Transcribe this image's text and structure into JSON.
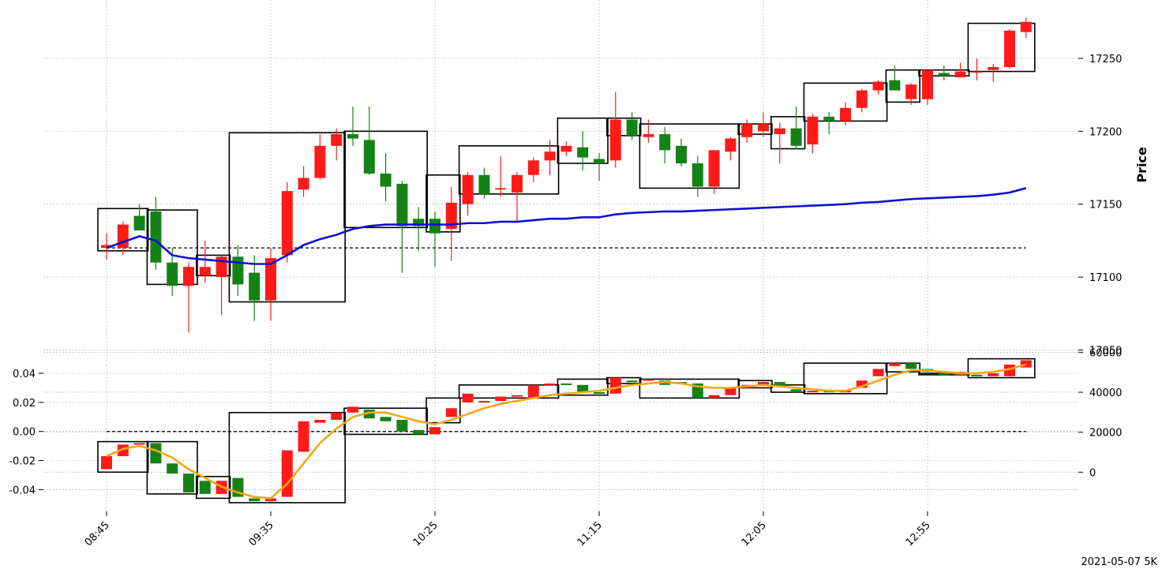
{
  "chart_data": {
    "type": "candlestick",
    "footer": "2021-05-07 5K",
    "colors": {
      "up": "#ff1a1a",
      "down": "#158215",
      "ma": "#1010d0",
      "osc": "#f0a818",
      "box": "#000000"
    },
    "x_ticks": [
      {
        "index": 0,
        "label": "08:45"
      },
      {
        "index": 10,
        "label": "09:35"
      },
      {
        "index": 20,
        "label": "10:25"
      },
      {
        "index": 30,
        "label": "11:15"
      },
      {
        "index": 40,
        "label": "12:05"
      },
      {
        "index": 50,
        "label": "12:55"
      }
    ],
    "price_panel": {
      "ylabel": "Price",
      "ylim": [
        17040,
        17290
      ],
      "y_ticks": [
        17050,
        17100,
        17150,
        17200,
        17250
      ],
      "reference_line": 17120,
      "candles": [
        [
          17120,
          17130,
          17112,
          17122
        ],
        [
          17120,
          17138,
          17115,
          17136
        ],
        [
          17142,
          17150,
          17133,
          17132
        ],
        [
          17145,
          17155,
          17105,
          17110
        ],
        [
          17110,
          17120,
          17087,
          17094
        ],
        [
          17094,
          17110,
          17062,
          17107
        ],
        [
          17101,
          17125,
          17096,
          17107
        ],
        [
          17100,
          17115,
          17074,
          17114
        ],
        [
          17114,
          17122,
          17087,
          17095
        ],
        [
          17103,
          17115,
          17070,
          17084
        ],
        [
          17084,
          17120,
          17070,
          17113
        ],
        [
          17115,
          17165,
          17110,
          17159
        ],
        [
          17160,
          17176,
          17155,
          17168
        ],
        [
          17168,
          17198,
          17167,
          17190
        ],
        [
          17190,
          17202,
          17180,
          17198
        ],
        [
          17198,
          17217,
          17190,
          17195
        ],
        [
          17194,
          17217,
          17170,
          17171
        ],
        [
          17171,
          17185,
          17152,
          17162
        ],
        [
          17164,
          17166,
          17103,
          17135
        ],
        [
          17140,
          17148,
          17118,
          17135
        ],
        [
          17140,
          17145,
          17107,
          17130
        ],
        [
          17133,
          17162,
          17111,
          17151
        ],
        [
          17150,
          17172,
          17142,
          17170
        ],
        [
          17170,
          17175,
          17154,
          17157
        ],
        [
          17160,
          17183,
          17155,
          17161
        ],
        [
          17158,
          17172,
          17137,
          17170
        ],
        [
          17170,
          17182,
          17165,
          17180
        ],
        [
          17180,
          17194,
          17170,
          17186
        ],
        [
          17186,
          17193,
          17183,
          17190
        ],
        [
          17189,
          17200,
          17173,
          17182
        ],
        [
          17181,
          17185,
          17166,
          17178
        ],
        [
          17180,
          17227,
          17175,
          17208
        ],
        [
          17208,
          17213,
          17194,
          17197
        ],
        [
          17196,
          17208,
          17192,
          17198
        ],
        [
          17198,
          17203,
          17178,
          17187
        ],
        [
          17190,
          17195,
          17176,
          17178
        ],
        [
          17178,
          17183,
          17155,
          17162
        ],
        [
          17162,
          17187,
          17157,
          17187
        ],
        [
          17186,
          17196,
          17180,
          17195
        ],
        [
          17196,
          17208,
          17192,
          17205
        ],
        [
          17200,
          17213,
          17196,
          17205
        ],
        [
          17198,
          17206,
          17178,
          17202
        ],
        [
          17202,
          17217,
          17188,
          17190
        ],
        [
          17191,
          17212,
          17185,
          17210
        ],
        [
          17210,
          17213,
          17198,
          17207
        ],
        [
          17207,
          17220,
          17204,
          17216
        ],
        [
          17216,
          17229,
          17213,
          17228
        ],
        [
          17228,
          17235,
          17225,
          17234
        ],
        [
          17235,
          17245,
          17230,
          17228
        ],
        [
          17222,
          17233,
          17218,
          17232
        ],
        [
          17222,
          17242,
          17218,
          17242
        ],
        [
          17240,
          17245,
          17235,
          17238
        ],
        [
          17237,
          17247,
          17237,
          17241
        ],
        [
          17241,
          17250,
          17235,
          17241
        ],
        [
          17242,
          17246,
          17234,
          17244
        ],
        [
          17244,
          17270,
          17243,
          17269
        ],
        [
          17268,
          17278,
          17264,
          17275
        ]
      ],
      "moving_average": [
        17120,
        17124,
        17128,
        17125,
        17115,
        17113,
        17112,
        17111,
        17110,
        17109,
        17109,
        17115,
        17122,
        17126,
        17129,
        17133,
        17135,
        17136,
        17136,
        17136,
        17136,
        17136,
        17137,
        17137,
        17138,
        17138,
        17139,
        17140,
        17140,
        17141,
        17141,
        17143,
        17144,
        17144.5,
        17145,
        17145,
        17145.5,
        17146,
        17146.5,
        17147,
        17147.5,
        17148,
        17148.5,
        17149,
        17149.5,
        17150,
        17151,
        17151.5,
        17152.5,
        17153.5,
        17154,
        17154.5,
        17155,
        17155.5,
        17156.5,
        17158,
        17161
      ],
      "boxes": [
        {
          "from": 0,
          "to": 2,
          "low": 17118,
          "high": 17147
        },
        {
          "from": 3,
          "to": 5,
          "low": 17095,
          "high": 17146
        },
        {
          "from": 6,
          "to": 7,
          "low": 17101,
          "high": 17115
        },
        {
          "from": 8,
          "to": 14,
          "low": 17083,
          "high": 17199
        },
        {
          "from": 15,
          "to": 19,
          "low": 17134,
          "high": 17200
        },
        {
          "from": 20,
          "to": 21,
          "low": 17131,
          "high": 17170
        },
        {
          "from": 22,
          "to": 27,
          "low": 17157,
          "high": 17190
        },
        {
          "from": 28,
          "to": 30,
          "low": 17178,
          "high": 17209
        },
        {
          "from": 31,
          "to": 32,
          "low": 17197,
          "high": 17209
        },
        {
          "from": 33,
          "to": 38,
          "low": 17161,
          "high": 17205
        },
        {
          "from": 39,
          "to": 40,
          "low": 17198,
          "high": 17205
        },
        {
          "from": 41,
          "to": 42,
          "low": 17188,
          "high": 17210
        },
        {
          "from": 43,
          "to": 47,
          "low": 17207,
          "high": 17233
        },
        {
          "from": 48,
          "to": 49,
          "low": 17220,
          "high": 17242
        },
        {
          "from": 50,
          "to": 52,
          "low": 17238,
          "high": 17242
        },
        {
          "from": 53,
          "to": 56,
          "low": 17241,
          "high": 17274
        }
      ]
    },
    "indicator_panel": {
      "left_ylim": [
        -0.055,
        0.046
      ],
      "left_ticks": [
        -0.04,
        -0.02,
        0.0,
        0.02,
        0.04
      ],
      "right_ticks": [
        0,
        20000,
        40000,
        60000
      ],
      "reference_line": 0.0,
      "bars": [
        [
          -0.026,
          -0.017
        ],
        [
          -0.017,
          -0.009
        ],
        [
          -0.009,
          -0.008
        ],
        [
          -0.008,
          -0.022
        ],
        [
          -0.022,
          -0.029
        ],
        [
          -0.029,
          -0.042
        ],
        [
          -0.034,
          -0.043
        ],
        [
          -0.043,
          -0.034
        ],
        [
          -0.032,
          -0.045
        ],
        [
          -0.046,
          -0.048
        ],
        [
          -0.048,
          -0.046
        ],
        [
          -0.045,
          -0.013
        ],
        [
          -0.014,
          0.007
        ],
        [
          0.006,
          0.008
        ],
        [
          0.008,
          0.013
        ],
        [
          0.013,
          0.017
        ],
        [
          0.015,
          0.009
        ],
        [
          0.01,
          0.007
        ],
        [
          0.008,
          0.0
        ],
        [
          0.001,
          -0.002
        ],
        [
          -0.002,
          0.003
        ],
        [
          0.01,
          0.016
        ],
        [
          0.02,
          0.026
        ],
        [
          0.02,
          0.021
        ],
        [
          0.021,
          0.024
        ],
        [
          0.024,
          0.025
        ],
        [
          0.023,
          0.032
        ],
        [
          0.032,
          0.033
        ],
        [
          0.033,
          0.032
        ],
        [
          0.032,
          0.027
        ],
        [
          0.027,
          0.026
        ],
        [
          0.026,
          0.037
        ],
        [
          0.035,
          0.034
        ],
        [
          0.035,
          0.036
        ],
        [
          0.035,
          0.032
        ],
        [
          0.034,
          0.033
        ],
        [
          0.033,
          0.023
        ],
        [
          0.023,
          0.025
        ],
        [
          0.025,
          0.03
        ],
        [
          0.03,
          0.032
        ],
        [
          0.032,
          0.034
        ],
        [
          0.034,
          0.031
        ],
        [
          0.029,
          0.027
        ],
        [
          0.027,
          0.028
        ],
        [
          0.028,
          0.027
        ],
        [
          0.027,
          0.028
        ],
        [
          0.03,
          0.035
        ],
        [
          0.038,
          0.043
        ],
        [
          0.045,
          0.047
        ],
        [
          0.047,
          0.043
        ],
        [
          0.043,
          0.041
        ],
        [
          0.041,
          0.039
        ],
        [
          0.039,
          0.041
        ],
        [
          0.039,
          0.038
        ],
        [
          0.038,
          0.04
        ],
        [
          0.038,
          0.046
        ],
        [
          0.044,
          0.049
        ]
      ],
      "oscillator": [
        -0.017,
        -0.012,
        -0.01,
        -0.013,
        -0.018,
        -0.026,
        -0.032,
        -0.038,
        -0.042,
        -0.045,
        -0.046,
        -0.036,
        -0.022,
        -0.008,
        0.002,
        0.01,
        0.013,
        0.013,
        0.01,
        0.007,
        0.005,
        0.008,
        0.012,
        0.016,
        0.019,
        0.021,
        0.023,
        0.025,
        0.026,
        0.027,
        0.028,
        0.03,
        0.032,
        0.033,
        0.034,
        0.033,
        0.031,
        0.03,
        0.03,
        0.031,
        0.032,
        0.031,
        0.03,
        0.029,
        0.028,
        0.028,
        0.031,
        0.035,
        0.039,
        0.042,
        0.042,
        0.041,
        0.04,
        0.04,
        0.041,
        0.043,
        0.046
      ],
      "boxes": [
        {
          "from": 0,
          "to": 2,
          "low": -0.028,
          "high": -0.007
        },
        {
          "from": 3,
          "to": 5,
          "low": -0.043,
          "high": -0.007
        },
        {
          "from": 6,
          "to": 7,
          "low": -0.046,
          "high": -0.031
        },
        {
          "from": 8,
          "to": 14,
          "low": -0.049,
          "high": 0.013
        },
        {
          "from": 15,
          "to": 19,
          "low": -0.002,
          "high": 0.016
        },
        {
          "from": 20,
          "to": 21,
          "low": 0.006,
          "high": 0.023
        },
        {
          "from": 22,
          "to": 27,
          "low": 0.023,
          "high": 0.032
        },
        {
          "from": 28,
          "to": 30,
          "low": 0.025,
          "high": 0.036
        },
        {
          "from": 31,
          "to": 32,
          "low": 0.033,
          "high": 0.037
        },
        {
          "from": 33,
          "to": 38,
          "low": 0.023,
          "high": 0.036
        },
        {
          "from": 39,
          "to": 40,
          "low": 0.03,
          "high": 0.035
        },
        {
          "from": 41,
          "to": 42,
          "low": 0.027,
          "high": 0.032
        },
        {
          "from": 43,
          "to": 47,
          "low": 0.026,
          "high": 0.047
        },
        {
          "from": 48,
          "to": 49,
          "low": 0.041,
          "high": 0.047
        },
        {
          "from": 50,
          "to": 52,
          "low": 0.039,
          "high": 0.04
        },
        {
          "from": 53,
          "to": 56,
          "low": 0.037,
          "high": 0.05
        }
      ]
    }
  }
}
